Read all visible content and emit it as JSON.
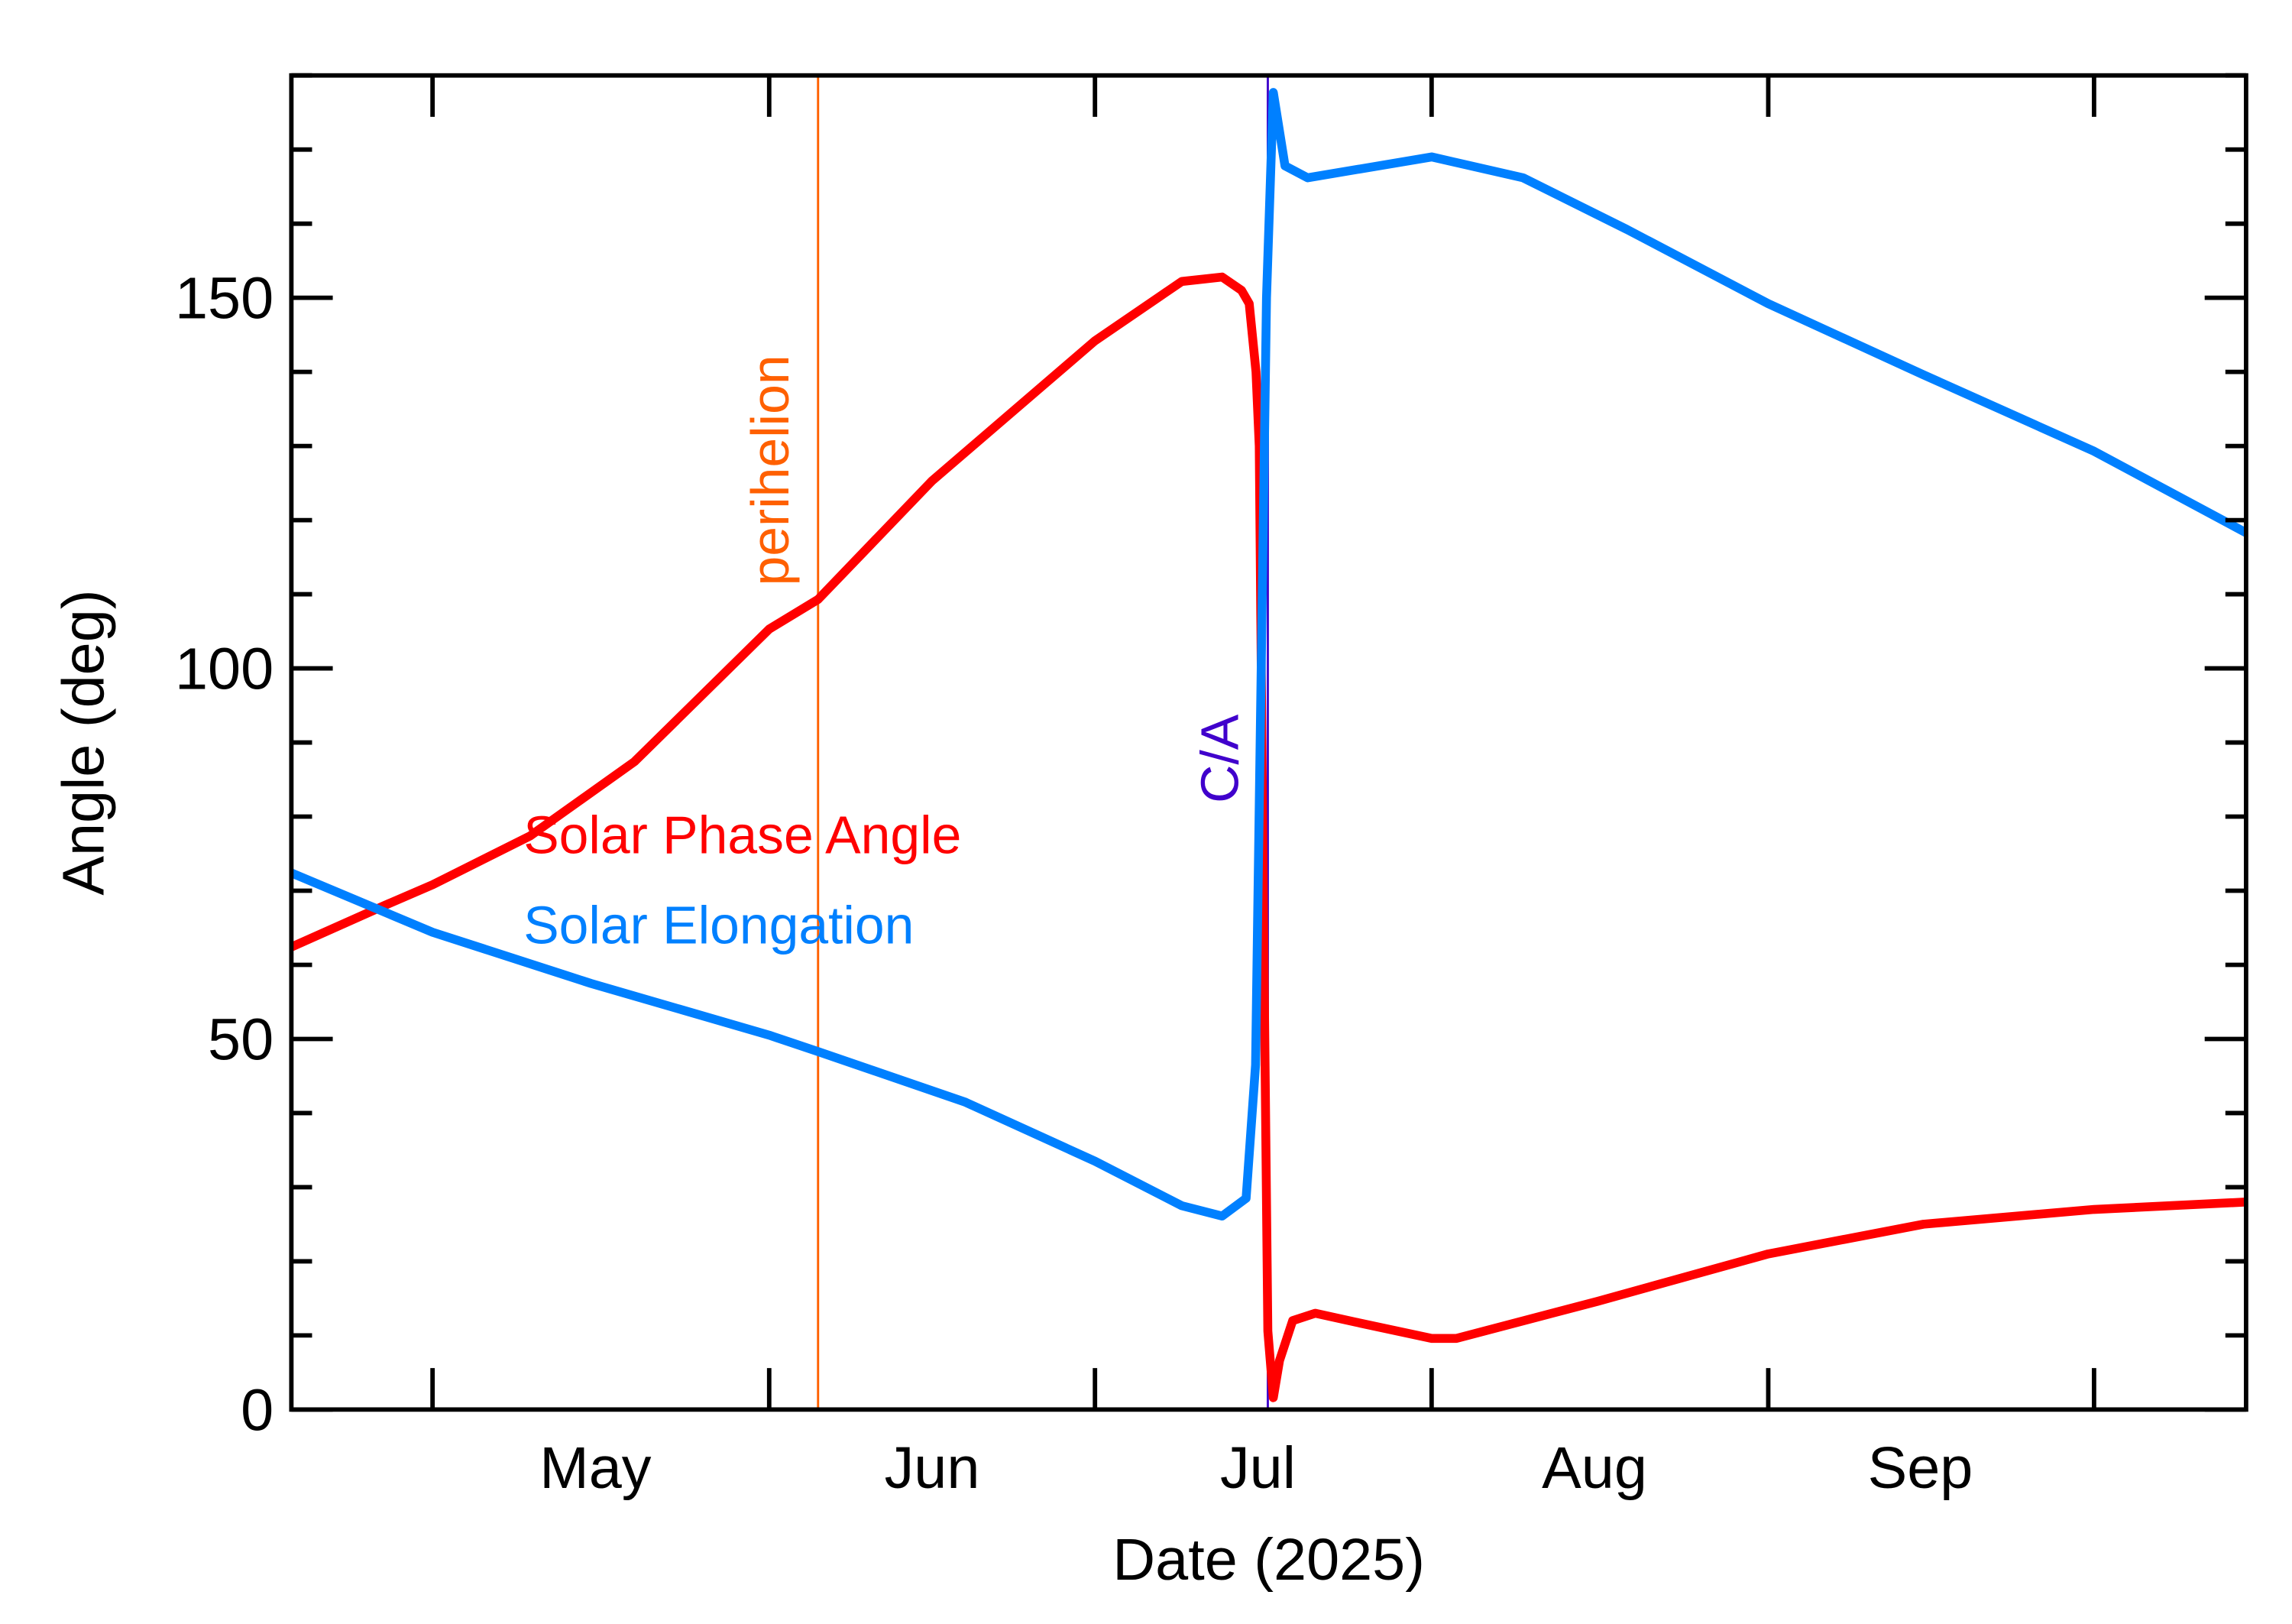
{
  "chart_data": {
    "type": "line",
    "title": "",
    "xlabel": "Date (2025)",
    "ylabel": "Angle (deg)",
    "xlim": [
      "2025-04-18",
      "2025-10-15"
    ],
    "ylim": [
      0,
      180
    ],
    "y_major_ticks": [
      0,
      50,
      100,
      150
    ],
    "y_minor_step": 10,
    "x_ticks": [
      "2025-05-01",
      "2025-06-01",
      "2025-07-01",
      "2025-08-01",
      "2025-09-01",
      "2025-10-01"
    ],
    "x_tick_labels": [
      {
        "label": "May",
        "date": "2025-05-16"
      },
      {
        "label": "Jun",
        "date": "2025-06-16"
      },
      {
        "label": "Jul",
        "date": "2025-07-16"
      },
      {
        "label": "Aug",
        "date": "2025-08-16"
      },
      {
        "label": "Sep",
        "date": "2025-09-15"
      }
    ],
    "grid": false,
    "legend_placement": "center-left",
    "markers": [
      {
        "label": "perihelion",
        "date": "2025-06-05T12:00",
        "color": "#ff6000"
      },
      {
        "label": "C/A",
        "date": "2025-07-16T22:00",
        "color": "#4000cc"
      }
    ],
    "series": [
      {
        "name": "Solar Phase Angle",
        "color": "#ff0000",
        "points": [
          [
            "2025-04-18T00:00",
            62.4
          ],
          [
            "2025-04-26T14:00",
            68.0
          ],
          [
            "2025-05-01T00:00",
            70.8
          ],
          [
            "2025-05-10T00:00",
            77.4
          ],
          [
            "2025-05-19T14:00",
            87.4
          ],
          [
            "2025-06-01T00:00",
            105.3
          ],
          [
            "2025-06-05T12:00",
            109.3
          ],
          [
            "2025-06-16T00:00",
            125.3
          ],
          [
            "2025-07-01T00:00",
            144.2
          ],
          [
            "2025-07-09T00:00",
            152.2
          ],
          [
            "2025-07-12T17:00",
            152.8
          ],
          [
            "2025-07-14T12:00",
            151.0
          ],
          [
            "2025-07-15T05:00",
            149.2
          ],
          [
            "2025-07-15T20:00",
            140.0
          ],
          [
            "2025-07-16T03:00",
            130.0
          ],
          [
            "2025-07-16T12:00",
            70.0
          ],
          [
            "2025-07-16T22:00",
            10.6
          ],
          [
            "2025-07-17T10:00",
            1.6
          ],
          [
            "2025-07-18T00:00",
            6.6
          ],
          [
            "2025-07-19T05:00",
            12.0
          ],
          [
            "2025-07-21T07:00",
            13.0
          ],
          [
            "2025-07-25T00:00",
            11.8
          ],
          [
            "2025-08-01T00:00",
            9.6
          ],
          [
            "2025-08-03T07:00",
            9.6
          ],
          [
            "2025-08-16T07:00",
            14.6
          ],
          [
            "2025-09-01T00:00",
            21.0
          ],
          [
            "2025-09-15T07:00",
            25.0
          ],
          [
            "2025-10-01T00:00",
            27.0
          ],
          [
            "2025-10-15T00:00",
            28.0
          ]
        ]
      },
      {
        "name": "Solar Elongation",
        "color": "#0080ff",
        "points": [
          [
            "2025-04-18T00:00",
            72.4
          ],
          [
            "2025-05-01T00:00",
            64.4
          ],
          [
            "2025-05-15T14:00",
            57.5
          ],
          [
            "2025-06-01T00:00",
            50.5
          ],
          [
            "2025-06-05T12:00",
            48.3
          ],
          [
            "2025-06-19T00:00",
            41.5
          ],
          [
            "2025-07-01T00:00",
            33.5
          ],
          [
            "2025-07-09T00:00",
            27.5
          ],
          [
            "2025-07-12T17:00",
            26.1
          ],
          [
            "2025-07-14T22:00",
            28.5
          ],
          [
            "2025-07-15T19:00",
            46.5
          ],
          [
            "2025-07-16T05:00",
            90.0
          ],
          [
            "2025-07-16T19:00",
            150.0
          ],
          [
            "2025-07-17T10:00",
            177.7
          ],
          [
            "2025-07-18T12:00",
            167.8
          ],
          [
            "2025-07-20T14:00",
            166.2
          ],
          [
            "2025-08-01T00:00",
            169.0
          ],
          [
            "2025-08-09T10:00",
            166.2
          ],
          [
            "2025-08-19T00:00",
            159.2
          ],
          [
            "2025-09-01T00:00",
            149.2
          ],
          [
            "2025-09-15T07:00",
            139.6
          ],
          [
            "2025-10-01T00:00",
            129.3
          ],
          [
            "2025-10-15T00:00",
            118.3
          ]
        ]
      }
    ]
  }
}
